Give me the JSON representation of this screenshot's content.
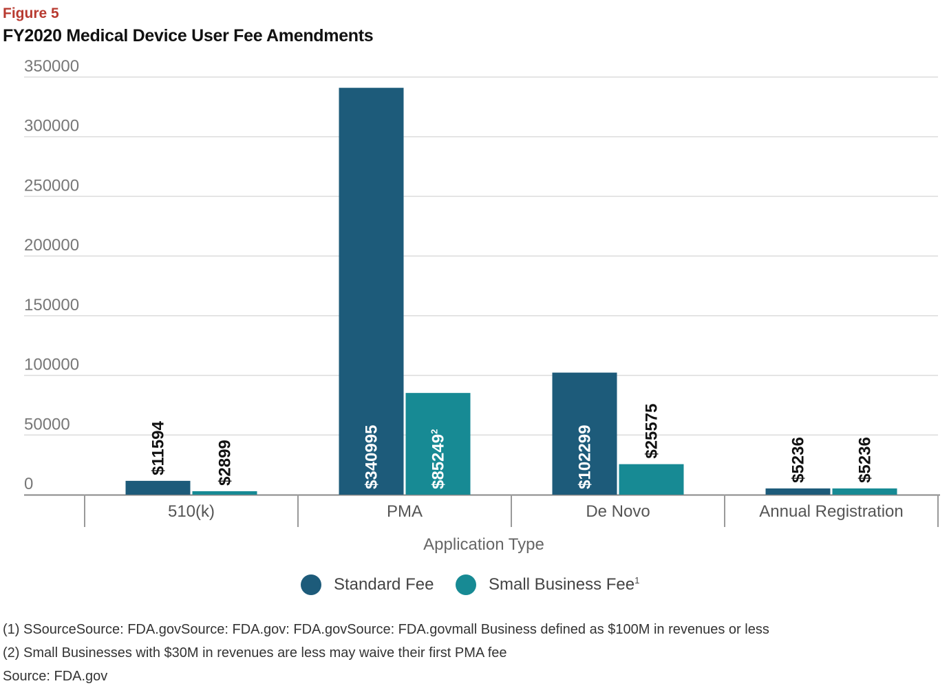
{
  "figure_label": "Figure 5",
  "title": "FY2020 Medical Device User Fee Amendments",
  "colors": {
    "standard": "#1d5b7a",
    "small": "#178a94",
    "grid": "#dcdcdc",
    "axis": "#888888",
    "tick_text": "#777777"
  },
  "legend": {
    "standard": "Standard Fee",
    "small": "Small Business Fee",
    "small_sup": "1"
  },
  "footnotes": {
    "note1": "(1) SSourceSource: FDA.govSource: FDA.gov: FDA.govSource: FDA.govmall Business defined as $100M in revenues or less",
    "note2": "(2) Small Businesses with $30M in revenues are less may waive their first PMA fee",
    "source": "Source: FDA.gov"
  },
  "chart_data": {
    "type": "bar",
    "xlabel": "Application Type",
    "ylabel": "",
    "ylim": [
      0,
      350000
    ],
    "yticks": [
      "0",
      "50000",
      "100000",
      "150000",
      "200000",
      "250000",
      "300000",
      "350000"
    ],
    "grid": true,
    "legend_position": "bottom",
    "categories": [
      "510(k)",
      "PMA",
      "De Novo",
      "Annual Registration"
    ],
    "series": [
      {
        "name": "Standard Fee",
        "values": [
          11594,
          340995,
          102299,
          5236
        ],
        "labels": [
          "$11594",
          "$340995",
          "$102299",
          "$5236"
        ],
        "label_inside": [
          false,
          true,
          true,
          false
        ]
      },
      {
        "name": "Small Business Fee",
        "values": [
          2899,
          85249,
          25575,
          5236
        ],
        "labels": [
          "$2899",
          "$85249",
          "$25575",
          "$5236"
        ],
        "label_sup": [
          "",
          "2",
          "",
          ""
        ],
        "label_inside": [
          false,
          true,
          false,
          false
        ]
      }
    ]
  }
}
